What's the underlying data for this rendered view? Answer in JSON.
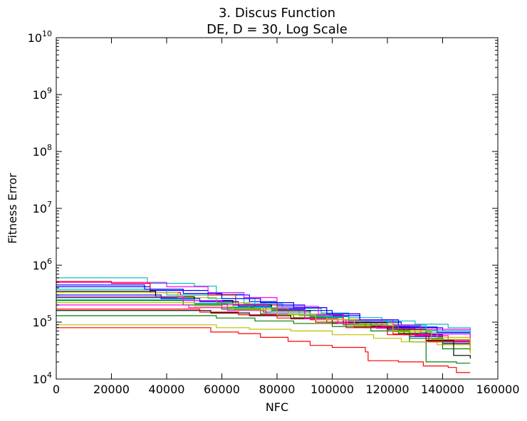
{
  "chart_data": {
    "type": "line",
    "title_line1": "3.   Discus Function",
    "title_line2": "DE, D = 30, Log Scale",
    "xlabel": "NFC",
    "ylabel": "Fitness Error",
    "xlim": [
      0,
      160000
    ],
    "ylim": [
      10000,
      10000000000
    ],
    "yscale": "log",
    "grid": false,
    "x_ticks": [
      "0",
      "20000",
      "40000",
      "60000",
      "80000",
      "100000",
      "120000",
      "140000",
      "160000"
    ],
    "y_ticks": [
      {
        "base": "10",
        "exp": "4",
        "value": 10000
      },
      {
        "base": "10",
        "exp": "5",
        "value": 100000
      },
      {
        "base": "10",
        "exp": "6",
        "value": 1000000
      },
      {
        "base": "10",
        "exp": "7",
        "value": 10000000
      },
      {
        "base": "10",
        "exp": "8",
        "value": 100000000
      },
      {
        "base": "10",
        "exp": "9",
        "value": 1000000000
      },
      {
        "base": "10",
        "exp": "10",
        "value": 10000000000
      }
    ],
    "series": [
      {
        "color": "#00bfbf",
        "points": [
          [
            0,
            600000
          ],
          [
            31000,
            600000
          ],
          [
            33000,
            480000
          ],
          [
            50000,
            430000
          ],
          [
            58000,
            310000
          ],
          [
            68000,
            210000
          ],
          [
            82000,
            175000
          ],
          [
            96000,
            145000
          ],
          [
            106000,
            120000
          ],
          [
            118000,
            105000
          ],
          [
            130000,
            92000
          ],
          [
            142000,
            80000
          ],
          [
            150000,
            77000
          ]
        ]
      },
      {
        "color": "#ff0000",
        "points": [
          [
            0,
            80000
          ],
          [
            55000,
            80000
          ],
          [
            56000,
            67000
          ],
          [
            66000,
            63000
          ],
          [
            74000,
            54000
          ],
          [
            84000,
            46000
          ],
          [
            92000,
            39000
          ],
          [
            100000,
            36000
          ],
          [
            112000,
            30000
          ],
          [
            113000,
            21000
          ],
          [
            124000,
            20000
          ],
          [
            133000,
            17000
          ],
          [
            142000,
            16000
          ],
          [
            145000,
            13000
          ],
          [
            150000,
            13000
          ]
        ]
      },
      {
        "color": "#0000ff",
        "points": [
          [
            0,
            420000
          ],
          [
            30000,
            420000
          ],
          [
            34000,
            360000
          ],
          [
            55000,
            300000
          ],
          [
            70000,
            230000
          ],
          [
            80000,
            200000
          ],
          [
            90000,
            160000
          ],
          [
            100000,
            130000
          ],
          [
            110000,
            100000
          ],
          [
            125000,
            80000
          ],
          [
            140000,
            70000
          ],
          [
            150000,
            68000
          ]
        ]
      },
      {
        "color": "#008000",
        "points": [
          [
            0,
            270000
          ],
          [
            35000,
            270000
          ],
          [
            50000,
            210000
          ],
          [
            62000,
            180000
          ],
          [
            75000,
            150000
          ],
          [
            92000,
            120000
          ],
          [
            104000,
            90000
          ],
          [
            120000,
            70000
          ],
          [
            128000,
            45000
          ],
          [
            134000,
            20000
          ],
          [
            145000,
            19000
          ],
          [
            150000,
            19000
          ]
        ]
      },
      {
        "color": "#ff00ff",
        "points": [
          [
            0,
            500000
          ],
          [
            30000,
            500000
          ],
          [
            40000,
            420000
          ],
          [
            55000,
            330000
          ],
          [
            68000,
            270000
          ],
          [
            80000,
            190000
          ],
          [
            95000,
            140000
          ],
          [
            110000,
            110000
          ],
          [
            122000,
            90000
          ],
          [
            132000,
            75000
          ],
          [
            150000,
            72000
          ]
        ]
      },
      {
        "color": "#bfbf00",
        "points": [
          [
            0,
            90000
          ],
          [
            50000,
            90000
          ],
          [
            58000,
            80000
          ],
          [
            70000,
            75000
          ],
          [
            85000,
            70000
          ],
          [
            100000,
            60000
          ],
          [
            115000,
            52000
          ],
          [
            125000,
            45000
          ],
          [
            138000,
            40000
          ],
          [
            150000,
            38000
          ]
        ]
      },
      {
        "color": "#000000",
        "points": [
          [
            0,
            160000
          ],
          [
            45000,
            160000
          ],
          [
            56000,
            145000
          ],
          [
            70000,
            130000
          ],
          [
            85000,
            115000
          ],
          [
            100000,
            95000
          ],
          [
            112000,
            80000
          ],
          [
            126000,
            60000
          ],
          [
            140000,
            42000
          ],
          [
            150000,
            30000
          ]
        ]
      },
      {
        "color": "#ff0000",
        "points": [
          [
            0,
            520000
          ],
          [
            8000,
            520000
          ],
          [
            20000,
            480000
          ],
          [
            34000,
            330000
          ],
          [
            45000,
            300000
          ],
          [
            65000,
            200000
          ],
          [
            80000,
            150000
          ],
          [
            92000,
            110000
          ],
          [
            105000,
            80000
          ],
          [
            120000,
            60000
          ],
          [
            135000,
            45000
          ],
          [
            150000,
            42000
          ]
        ]
      },
      {
        "color": "#00bfbf",
        "points": [
          [
            0,
            380000
          ],
          [
            28000,
            380000
          ],
          [
            40000,
            300000
          ],
          [
            55000,
            260000
          ],
          [
            72000,
            180000
          ],
          [
            88000,
            130000
          ],
          [
            100000,
            110000
          ],
          [
            118000,
            85000
          ],
          [
            132000,
            65000
          ],
          [
            150000,
            62000
          ]
        ]
      },
      {
        "color": "#0000ff",
        "points": [
          [
            0,
            300000
          ],
          [
            32000,
            300000
          ],
          [
            38000,
            260000
          ],
          [
            52000,
            230000
          ],
          [
            66000,
            190000
          ],
          [
            78000,
            170000
          ],
          [
            90000,
            135000
          ],
          [
            104000,
            100000
          ],
          [
            114000,
            85000
          ],
          [
            128000,
            56000
          ],
          [
            140000,
            45000
          ],
          [
            150000,
            36000
          ]
        ]
      },
      {
        "color": "#008000",
        "points": [
          [
            0,
            240000
          ],
          [
            36000,
            240000
          ],
          [
            46000,
            200000
          ],
          [
            60000,
            170000
          ],
          [
            74000,
            140000
          ],
          [
            86000,
            120000
          ],
          [
            98000,
            100000
          ],
          [
            112000,
            82000
          ],
          [
            124000,
            64000
          ],
          [
            136000,
            50000
          ],
          [
            150000,
            46000
          ]
        ]
      },
      {
        "color": "#ff00ff",
        "points": [
          [
            0,
            200000
          ],
          [
            40000,
            200000
          ],
          [
            48000,
            180000
          ],
          [
            62000,
            160000
          ],
          [
            76000,
            140000
          ],
          [
            90000,
            115000
          ],
          [
            102000,
            95000
          ],
          [
            116000,
            78000
          ],
          [
            130000,
            58000
          ],
          [
            142000,
            48000
          ],
          [
            150000,
            44000
          ]
        ]
      },
      {
        "color": "#bfbf00",
        "points": [
          [
            0,
            330000
          ],
          [
            34000,
            330000
          ],
          [
            44000,
            270000
          ],
          [
            58000,
            220000
          ],
          [
            70000,
            175000
          ],
          [
            84000,
            140000
          ],
          [
            98000,
            112000
          ],
          [
            110000,
            95000
          ],
          [
            124000,
            72000
          ],
          [
            138000,
            54000
          ],
          [
            150000,
            50000
          ]
        ]
      },
      {
        "color": "#000000",
        "points": [
          [
            0,
            350000
          ],
          [
            30000,
            350000
          ],
          [
            36000,
            280000
          ],
          [
            50000,
            240000
          ],
          [
            64000,
            200000
          ],
          [
            78000,
            160000
          ],
          [
            92000,
            125000
          ],
          [
            106000,
            98000
          ],
          [
            120000,
            75000
          ],
          [
            134000,
            48000
          ],
          [
            144000,
            26000
          ],
          [
            150000,
            23000
          ]
        ]
      },
      {
        "color": "#ff0000",
        "points": [
          [
            0,
            170000
          ],
          [
            42000,
            170000
          ],
          [
            52000,
            150000
          ],
          [
            66000,
            135000
          ],
          [
            80000,
            118000
          ],
          [
            94000,
            100000
          ],
          [
            108000,
            82000
          ],
          [
            122000,
            62000
          ],
          [
            134000,
            46000
          ],
          [
            150000,
            40000
          ]
        ]
      },
      {
        "color": "#0000ff",
        "points": [
          [
            0,
            450000
          ],
          [
            26000,
            450000
          ],
          [
            32000,
            380000
          ],
          [
            46000,
            320000
          ],
          [
            60000,
            260000
          ],
          [
            74000,
            220000
          ],
          [
            86000,
            180000
          ],
          [
            98000,
            140000
          ],
          [
            110000,
            110000
          ],
          [
            124000,
            82000
          ],
          [
            138000,
            66000
          ],
          [
            150000,
            66000
          ]
        ]
      },
      {
        "color": "#008000",
        "points": [
          [
            0,
            130000
          ],
          [
            48000,
            130000
          ],
          [
            58000,
            118000
          ],
          [
            72000,
            105000
          ],
          [
            86000,
            95000
          ],
          [
            100000,
            84000
          ],
          [
            114000,
            70000
          ],
          [
            128000,
            52000
          ],
          [
            140000,
            34000
          ],
          [
            150000,
            32000
          ]
        ]
      },
      {
        "color": "#00bfbf",
        "points": [
          [
            0,
            250000
          ],
          [
            38000,
            250000
          ],
          [
            50000,
            215000
          ],
          [
            64000,
            185000
          ],
          [
            78000,
            150000
          ],
          [
            92000,
            125000
          ],
          [
            106000,
            105000
          ],
          [
            120000,
            88000
          ],
          [
            134000,
            70000
          ],
          [
            150000,
            56000
          ]
        ]
      },
      {
        "color": "#ff00ff",
        "points": [
          [
            0,
            280000
          ],
          [
            36000,
            280000
          ],
          [
            46000,
            240000
          ],
          [
            60000,
            205000
          ],
          [
            76000,
            165000
          ],
          [
            90000,
            135000
          ],
          [
            104000,
            108000
          ],
          [
            118000,
            86000
          ],
          [
            132000,
            62000
          ],
          [
            150000,
            52000
          ]
        ]
      },
      {
        "color": "#bfbf00",
        "points": [
          [
            0,
            220000
          ],
          [
            38000,
            220000
          ],
          [
            50000,
            190000
          ],
          [
            64000,
            165000
          ],
          [
            80000,
            135000
          ],
          [
            94000,
            110000
          ],
          [
            108000,
            88000
          ],
          [
            122000,
            68000
          ],
          [
            136000,
            50000
          ],
          [
            150000,
            28000
          ]
        ]
      }
    ]
  }
}
